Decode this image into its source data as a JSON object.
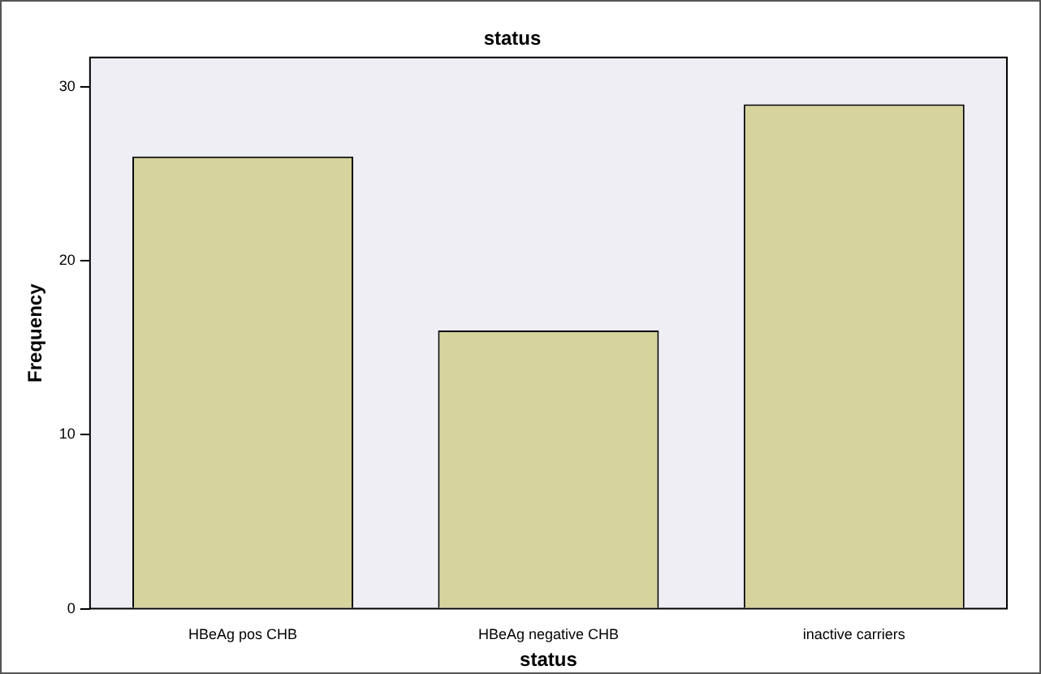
{
  "chart_data": {
    "type": "bar",
    "title": "status",
    "xlabel": "status",
    "ylabel": "Frequency",
    "categories": [
      "HBeAg pos CHB",
      "HBeAg negative CHB",
      "inactive carriers"
    ],
    "values": [
      26,
      16,
      29
    ],
    "color": "#d6d39c",
    "ylim": [
      0,
      31.7
    ],
    "yticks": [
      0,
      10,
      20,
      30
    ],
    "grid": false,
    "legend": false
  }
}
